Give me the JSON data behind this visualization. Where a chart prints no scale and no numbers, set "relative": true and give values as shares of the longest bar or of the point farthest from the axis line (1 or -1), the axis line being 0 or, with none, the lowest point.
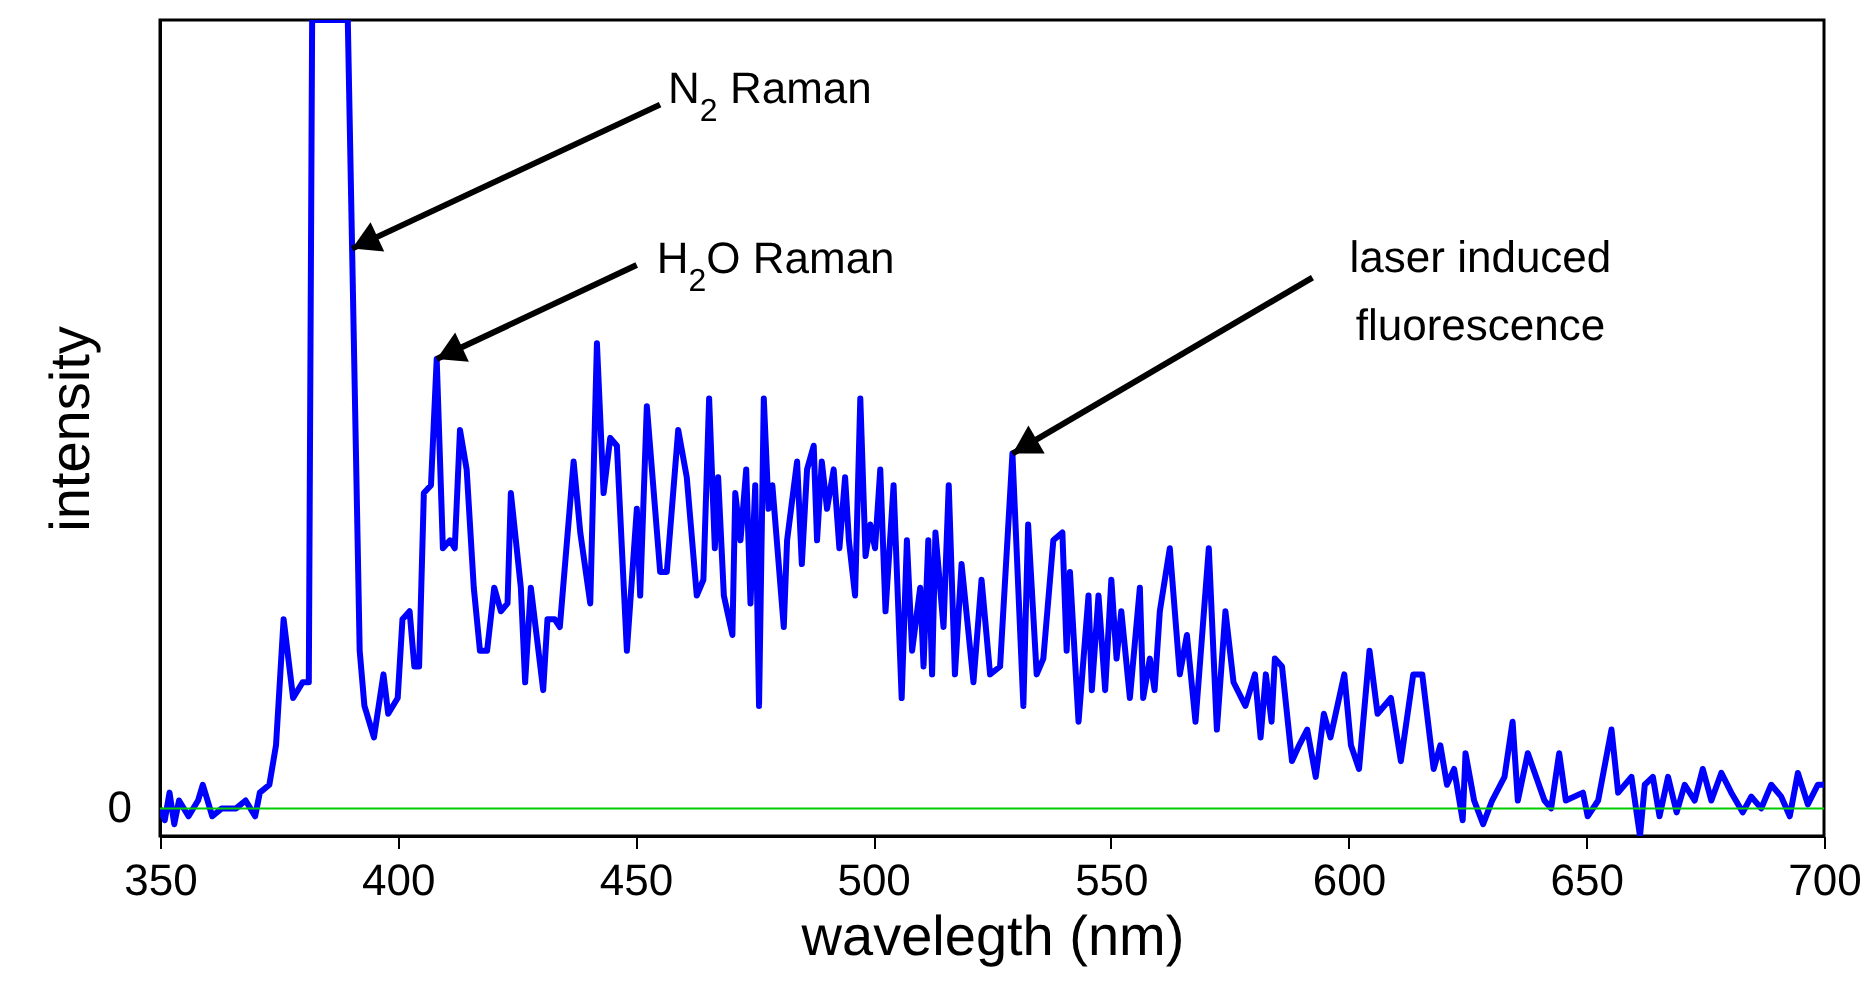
{
  "chart_data": {
    "type": "line",
    "xlabel": "wavelegth (nm)",
    "ylabel": "intensity",
    "color": "#0000ff",
    "relative": true,
    "xlim": [
      350,
      700
    ],
    "xticks": [
      350,
      400,
      450,
      500,
      550,
      600,
      650,
      700
    ],
    "x": [
      350,
      351,
      352,
      353,
      354,
      356,
      358,
      359,
      361,
      363,
      366,
      368,
      370,
      371,
      373,
      374.4,
      376,
      378,
      380,
      381.3,
      382,
      389.5,
      392,
      393,
      395,
      397,
      398,
      400,
      401,
      402.5,
      403.5,
      404.5,
      405.5,
      407,
      408.2,
      409.5,
      411,
      412,
      413.1,
      414.5,
      416,
      417.3,
      418.8,
      420.3,
      421.7,
      423.1,
      423.8,
      425.9,
      426.8,
      428,
      430.6,
      431.5,
      433,
      434.1,
      437,
      438.4,
      440.5,
      441.9,
      443.3,
      444.7,
      446.1,
      448.2,
      450.3,
      451,
      452.4,
      455.2,
      456.6,
      459,
      460.8,
      462.9,
      464.3,
      465.5,
      466.7,
      467.4,
      468.6,
      470.4,
      471,
      472.1,
      473.3,
      474.2,
      475.2,
      476,
      477,
      478,
      478.8,
      481.2,
      481.9,
      484,
      485,
      486.1,
      487.5,
      488.2,
      489.2,
      490.3,
      491.7,
      492.9,
      494.1,
      494.9,
      496.2,
      497.3,
      498.4,
      499.4,
      500.4,
      501.5,
      502.6,
      504.3,
      506,
      507.1,
      508.2,
      509.9,
      510.6,
      511.6,
      512.4,
      513.1,
      514.8,
      515.9,
      517.2,
      518.6,
      521.1,
      522.8,
      524.6,
      526.7,
      529.3,
      531.6,
      532.6,
      534.4,
      535.8,
      537.9,
      539.8,
      540.7,
      541.4,
      543.2,
      545.3,
      546,
      547.4,
      548.8,
      550.1,
      551.2,
      552.2,
      554,
      556.1,
      556.8,
      558.2,
      559.2,
      560.3,
      562.4,
      564.5,
      566,
      567.8,
      570.6,
      572.3,
      574.1,
      575.8,
      578.3,
      580.3,
      581.5,
      582.6,
      583.8,
      584.5,
      586,
      588.1,
      589.6,
      591.3,
      593.1,
      594.8,
      596.2,
      599.1,
      600.5,
      602.2,
      604.4,
      606.1,
      608.9,
      611,
      613.6,
      615.5,
      617.9,
      619.3,
      620.7,
      622.2,
      624,
      624.6,
      626.4,
      628.3,
      630.2,
      632.8,
      634.5,
      635.6,
      637.7,
      641.2,
      642.6,
      644.3,
      645.7,
      649.3,
      650.3,
      652.5,
      655.3,
      656.7,
      659.5,
      661.3,
      662.3,
      664,
      665.4,
      667.2,
      669,
      670.7,
      672.8,
      674.5,
      676.3,
      678.4,
      680.5,
      682.9,
      684.7,
      686.8,
      688.9,
      691,
      692.8,
      694.5,
      696.6,
      698.7,
      700
    ],
    "values": [
      0,
      -0.015,
      0.02,
      -0.02,
      0.01,
      -0.01,
      0.01,
      0.03,
      -0.01,
      0,
      0,
      0.01,
      -0.01,
      0.02,
      0.03,
      0.08,
      0.24,
      0.14,
      0.16,
      0.16,
      1,
      1,
      0.2,
      0.13,
      0.09,
      0.17,
      0.12,
      0.14,
      0.24,
      0.25,
      0.18,
      0.18,
      0.4,
      0.41,
      0.57,
      0.33,
      0.34,
      0.33,
      0.48,
      0.43,
      0.28,
      0.2,
      0.2,
      0.28,
      0.25,
      0.26,
      0.4,
      0.28,
      0.16,
      0.28,
      0.15,
      0.24,
      0.24,
      0.23,
      0.44,
      0.35,
      0.26,
      0.59,
      0.4,
      0.47,
      0.46,
      0.2,
      0.38,
      0.27,
      0.51,
      0.3,
      0.3,
      0.48,
      0.42,
      0.27,
      0.29,
      0.52,
      0.33,
      0.42,
      0.27,
      0.22,
      0.4,
      0.34,
      0.43,
      0.26,
      0.41,
      0.13,
      0.52,
      0.38,
      0.41,
      0.23,
      0.34,
      0.44,
      0.31,
      0.43,
      0.46,
      0.34,
      0.44,
      0.38,
      0.43,
      0.33,
      0.42,
      0.34,
      0.27,
      0.52,
      0.32,
      0.36,
      0.33,
      0.43,
      0.25,
      0.41,
      0.14,
      0.34,
      0.2,
      0.28,
      0.18,
      0.34,
      0.17,
      0.35,
      0.23,
      0.41,
      0.17,
      0.31,
      0.16,
      0.29,
      0.17,
      0.18,
      0.45,
      0.13,
      0.36,
      0.17,
      0.19,
      0.34,
      0.35,
      0.2,
      0.3,
      0.11,
      0.27,
      0.15,
      0.27,
      0.15,
      0.29,
      0.19,
      0.25,
      0.14,
      0.28,
      0.14,
      0.19,
      0.15,
      0.25,
      0.33,
      0.17,
      0.22,
      0.11,
      0.33,
      0.1,
      0.25,
      0.16,
      0.13,
      0.17,
      0.09,
      0.17,
      0.11,
      0.19,
      0.18,
      0.06,
      0.08,
      0.1,
      0.04,
      0.12,
      0.09,
      0.17,
      0.08,
      0.05,
      0.2,
      0.12,
      0.14,
      0.06,
      0.17,
      0.17,
      0.05,
      0.08,
      0.03,
      0.05,
      -0.015,
      0.07,
      0.01,
      -0.02,
      0.01,
      0.04,
      0.11,
      0.01,
      0.07,
      0.01,
      0,
      0.07,
      0.01,
      0.02,
      -0.01,
      0.01,
      0.1,
      0.02,
      0.04,
      -0.035,
      0.03,
      0.04,
      -0.01,
      0.04,
      -0.005,
      0.03,
      0.01,
      0.05,
      0.01,
      0.045,
      0.02,
      -0.005,
      0.015,
      0,
      0.03,
      0.015,
      -0.01,
      0.045,
      0.005,
      0.03,
      0.03
    ],
    "ref_lines": [
      {
        "axis": "y",
        "value": 0,
        "label": "0",
        "color": "#00cc00"
      }
    ],
    "annotations": [
      {
        "text": "N$_{2}$ Raman",
        "x": 390.4,
        "y": 0.71
      },
      {
        "text": "H$_{2}$O Raman",
        "x": 408.2,
        "y": 0.57
      },
      {
        "text": "laser induced fluorescence",
        "x": 529.3,
        "y": 0.45
      }
    ]
  }
}
